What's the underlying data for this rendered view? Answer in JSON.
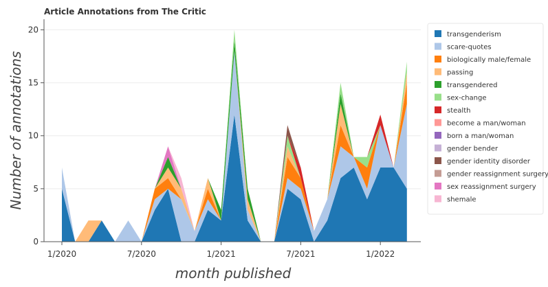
{
  "chart_data": {
    "type": "area",
    "stacked": true,
    "title": "Article Annotations from The Critic",
    "xlabel": "month published",
    "ylabel": "Number of annotations",
    "ylim": [
      0,
      21
    ],
    "yticks": [
      0,
      5,
      10,
      15,
      20
    ],
    "xticks": [
      "1/2020",
      "7/2020",
      "1/2021",
      "7/2021",
      "1/2022"
    ],
    "grid": "horizontal",
    "legend_position": "right",
    "x": [
      "1/2020",
      "2/2020",
      "3/2020",
      "4/2020",
      "5/2020",
      "6/2020",
      "7/2020",
      "8/2020",
      "9/2020",
      "10/2020",
      "11/2020",
      "12/2020",
      "1/2021",
      "2/2021",
      "3/2021",
      "4/2021",
      "5/2021",
      "6/2021",
      "7/2021",
      "8/2021",
      "9/2021",
      "10/2021",
      "11/2021",
      "12/2021",
      "1/2022",
      "2/2022",
      "3/2022"
    ],
    "series": [
      {
        "name": "transgenderism",
        "color": "#1f77b4",
        "values": [
          5,
          0,
          0,
          2,
          0,
          0,
          0,
          3,
          5,
          0,
          0,
          3,
          2,
          12,
          2,
          0,
          0,
          5,
          4,
          0,
          2,
          6,
          7,
          4,
          7,
          7,
          5
        ]
      },
      {
        "name": "scare-quotes",
        "color": "#aec7e8",
        "values": [
          2,
          0,
          0,
          0,
          0,
          2,
          0,
          1,
          0,
          4,
          1,
          1,
          0,
          6,
          1,
          0,
          0,
          1,
          1,
          1,
          2,
          3,
          1,
          1,
          4,
          0,
          8
        ]
      },
      {
        "name": "biologically male/female",
        "color": "#ff7f0e",
        "values": [
          0,
          0,
          0,
          0,
          0,
          0,
          0,
          1,
          1,
          0,
          0,
          1,
          0,
          0,
          0,
          0,
          0,
          2,
          1,
          0,
          0,
          2,
          0,
          2,
          0,
          0,
          2
        ]
      },
      {
        "name": "passing",
        "color": "#ffbb78",
        "values": [
          0,
          0,
          2,
          0,
          0,
          0,
          0,
          0,
          1,
          1,
          0,
          1,
          0,
          0,
          1,
          0,
          0,
          1,
          0,
          0,
          0,
          2,
          0,
          0,
          0,
          0,
          1
        ]
      },
      {
        "name": "transgendered",
        "color": "#2ca02c",
        "values": [
          0,
          0,
          0,
          0,
          0,
          0,
          0,
          0,
          1,
          0,
          0,
          0,
          1,
          1,
          1,
          0,
          0,
          0,
          0,
          0,
          0,
          1,
          0,
          0,
          0,
          0,
          0
        ]
      },
      {
        "name": "sex-change",
        "color": "#98df8a",
        "values": [
          0,
          0,
          0,
          0,
          0,
          0,
          0,
          0,
          0,
          0,
          0,
          0,
          0,
          1,
          0,
          0,
          0,
          1,
          0,
          0,
          0,
          1,
          0,
          1,
          0,
          0,
          1
        ]
      },
      {
        "name": "stealth",
        "color": "#d62728",
        "values": [
          0,
          0,
          0,
          0,
          0,
          0,
          0,
          0,
          0,
          0,
          0,
          0,
          0,
          0,
          0,
          0,
          0,
          0,
          1,
          0,
          0,
          0,
          0,
          0,
          1,
          0,
          0
        ]
      },
      {
        "name": "become a man/woman",
        "color": "#ff9896",
        "values": [
          0,
          0,
          0,
          0,
          0,
          0,
          0,
          0,
          0,
          0,
          0,
          0,
          0,
          0,
          0,
          0,
          0,
          0,
          0,
          0,
          0,
          0,
          0,
          0,
          0,
          0,
          0
        ]
      },
      {
        "name": "born a man/woman",
        "color": "#9467bd",
        "values": [
          0,
          0,
          0,
          0,
          0,
          0,
          0,
          0,
          0,
          0,
          0,
          0,
          0,
          0,
          0,
          0,
          0,
          0,
          0,
          0,
          0,
          0,
          0,
          0,
          0,
          0,
          0
        ]
      },
      {
        "name": "gender bender",
        "color": "#c5b0d5",
        "values": [
          0,
          0,
          0,
          0,
          0,
          0,
          0,
          0,
          0,
          0,
          0,
          0,
          0,
          0,
          0,
          0,
          0,
          0,
          0,
          0,
          0,
          0,
          0,
          0,
          0,
          0,
          0
        ]
      },
      {
        "name": "gender identity disorder",
        "color": "#8c564b",
        "values": [
          0,
          0,
          0,
          0,
          0,
          0,
          0,
          0,
          0,
          0,
          0,
          0,
          0,
          0,
          0,
          0,
          0,
          1,
          0,
          0,
          0,
          0,
          0,
          0,
          0,
          0,
          0
        ]
      },
      {
        "name": "gender reassignment surgery",
        "color": "#c49c94",
        "values": [
          0,
          0,
          0,
          0,
          0,
          0,
          0,
          0,
          0,
          0,
          0,
          0,
          0,
          0,
          0,
          0,
          0,
          0,
          0,
          0,
          0,
          0,
          0,
          0,
          0,
          0,
          0
        ]
      },
      {
        "name": "sex reassignment surgery",
        "color": "#e377c2",
        "values": [
          0,
          0,
          0,
          0,
          0,
          0,
          0,
          0,
          1,
          0,
          0,
          0,
          0,
          0,
          0,
          0,
          0,
          0,
          0,
          0,
          0,
          0,
          0,
          0,
          0,
          0,
          0
        ]
      },
      {
        "name": "shemale",
        "color": "#f7b6d2",
        "values": [
          0,
          0,
          0,
          0,
          0,
          0,
          0,
          0,
          0,
          1,
          0,
          0,
          0,
          0,
          0,
          0,
          0,
          0,
          0,
          0,
          0,
          0,
          0,
          0,
          0,
          0,
          0
        ]
      }
    ]
  }
}
